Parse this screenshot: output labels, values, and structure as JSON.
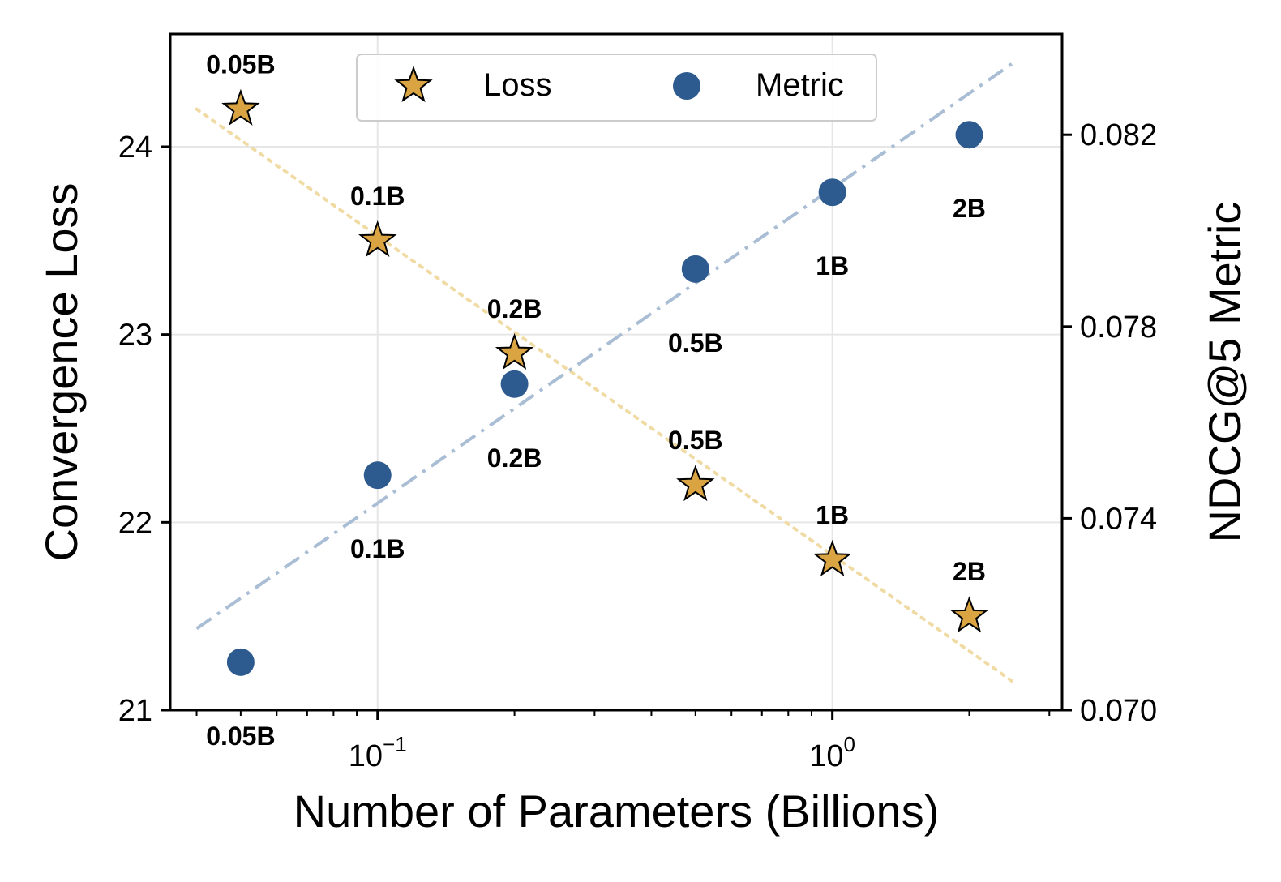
{
  "chart_data": {
    "type": "scatter",
    "xlabel": "Number of Parameters (Billions)",
    "ylabel_left": "Convergence Loss",
    "ylabel_right": "NDCG@5 Metric",
    "x_scale": "log",
    "xlim": [
      0.035,
      3.2
    ],
    "ylim_left": [
      21,
      24.6
    ],
    "ylim_right": [
      0.07,
      0.0841
    ],
    "x_ticks": [
      {
        "value": 0.1,
        "base": "10",
        "exp": "−1"
      },
      {
        "value": 1,
        "base": "10",
        "exp": "0"
      }
    ],
    "y_ticks_left": [
      {
        "value": 21,
        "label": "21"
      },
      {
        "value": 22,
        "label": "22"
      },
      {
        "value": 23,
        "label": "23"
      },
      {
        "value": 24,
        "label": "24"
      }
    ],
    "y_ticks_right": [
      {
        "value": 0.07,
        "label": "0.070"
      },
      {
        "value": 0.074,
        "label": "0.074"
      },
      {
        "value": 0.078,
        "label": "0.078"
      },
      {
        "value": 0.082,
        "label": "0.082"
      }
    ],
    "grid": true,
    "legend_position": "top-center",
    "series": [
      {
        "name": "Loss",
        "marker": "star",
        "color": "#D9A441",
        "axis": "left",
        "x": [
          0.05,
          0.1,
          0.2,
          0.5,
          1,
          2
        ],
        "y": [
          24.2,
          23.5,
          22.9,
          22.2,
          21.8,
          21.5
        ],
        "labels": [
          "0.05B",
          "0.1B",
          "0.2B",
          "0.5B",
          "1B",
          "2B"
        ],
        "fit": {
          "style": "dotted",
          "color": "#F0DBA5",
          "x": [
            0.04,
            2.5
          ],
          "y": [
            24.2,
            21.15
          ]
        }
      },
      {
        "name": "Metric",
        "marker": "circle",
        "color": "#2E5B8F",
        "axis": "right",
        "x": [
          0.05,
          0.1,
          0.2,
          0.5,
          1,
          2
        ],
        "y": [
          0.071,
          0.0749,
          0.0768,
          0.0792,
          0.0808,
          0.082
        ],
        "labels": [
          "0.05B",
          "0.1B",
          "0.2B",
          "0.5B",
          "1B",
          "2B"
        ],
        "fit": {
          "style": "dash-dot",
          "color": "#A9BDD4",
          "x": [
            0.04,
            2.5
          ],
          "y": [
            0.0717,
            0.0835
          ]
        }
      }
    ]
  }
}
